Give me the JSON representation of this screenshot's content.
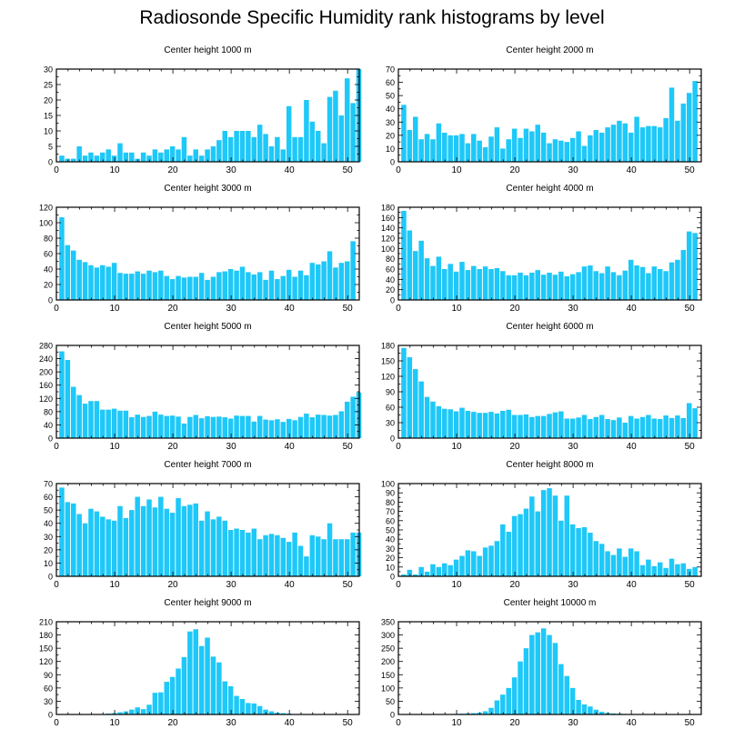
{
  "title": "Radiosonde Specific Humidity rank histograms by level",
  "colors": {
    "bar": "#1ec8f8",
    "bar_edge": "#ffffff",
    "axis": "#000000"
  },
  "chart_data": [
    {
      "type": "bar",
      "title": "Center height 1000 m",
      "xlim": [
        0,
        52
      ],
      "ylim": [
        0,
        30
      ],
      "xticks": [
        0,
        10,
        20,
        30,
        40,
        50
      ],
      "yticks": [
        0,
        5,
        10,
        15,
        20,
        25,
        30
      ],
      "values": [
        2,
        1,
        1,
        5,
        2,
        3,
        2,
        3,
        4,
        2,
        6,
        3,
        3,
        1,
        3,
        2,
        4,
        3,
        4,
        5,
        4,
        8,
        2,
        4,
        2,
        4,
        5,
        7,
        10,
        8,
        10,
        10,
        10,
        8,
        12,
        9,
        5,
        8,
        4,
        18,
        8,
        8,
        20,
        13,
        10,
        6,
        21,
        23,
        15,
        27,
        19,
        30
      ]
    },
    {
      "type": "bar",
      "title": "Center height 2000 m",
      "xlim": [
        0,
        52
      ],
      "ylim": [
        0,
        70
      ],
      "xticks": [
        0,
        10,
        20,
        30,
        40,
        50
      ],
      "yticks": [
        0,
        10,
        20,
        30,
        40,
        50,
        60,
        70
      ],
      "values": [
        43,
        24,
        34,
        17,
        21,
        17,
        29,
        22,
        20,
        20,
        21,
        14,
        21,
        16,
        11,
        19,
        26,
        10,
        17,
        25,
        18,
        25,
        23,
        28,
        22,
        14,
        17,
        16,
        15,
        18,
        23,
        12,
        20,
        24,
        22,
        26,
        28,
        31,
        29,
        22,
        34,
        26,
        27,
        27,
        26,
        33,
        56,
        31,
        44,
        52,
        61
      ]
    },
    {
      "type": "bar",
      "title": "Center height 3000 m",
      "xlim": [
        0,
        52
      ],
      "ylim": [
        0,
        120
      ],
      "xticks": [
        0,
        10,
        20,
        30,
        40,
        50
      ],
      "yticks": [
        0,
        20,
        40,
        60,
        80,
        100,
        120
      ],
      "values": [
        107,
        71,
        64,
        52,
        49,
        45,
        42,
        45,
        43,
        48,
        35,
        34,
        34,
        37,
        34,
        38,
        36,
        38,
        31,
        27,
        31,
        29,
        30,
        30,
        35,
        26,
        30,
        36,
        37,
        40,
        38,
        43,
        36,
        33,
        36,
        26,
        38,
        27,
        31,
        39,
        30,
        38,
        32,
        48,
        46,
        50,
        63,
        42,
        48,
        50,
        76
      ]
    },
    {
      "type": "bar",
      "title": "Center height 4000 m",
      "xlim": [
        0,
        52
      ],
      "ylim": [
        0,
        180
      ],
      "xticks": [
        0,
        10,
        20,
        30,
        40,
        50
      ],
      "yticks": [
        0,
        20,
        40,
        60,
        80,
        100,
        120,
        140,
        160,
        180
      ],
      "values": [
        173,
        135,
        95,
        115,
        81,
        66,
        84,
        60,
        70,
        55,
        74,
        58,
        66,
        60,
        65,
        60,
        62,
        56,
        48,
        48,
        53,
        48,
        53,
        58,
        49,
        53,
        49,
        55,
        46,
        50,
        54,
        65,
        67,
        56,
        52,
        65,
        54,
        48,
        57,
        78,
        67,
        64,
        52,
        65,
        60,
        56,
        73,
        78,
        97,
        133,
        130
      ]
    },
    {
      "type": "bar",
      "title": "Center height 5000 m",
      "xlim": [
        0,
        52
      ],
      "ylim": [
        0,
        280
      ],
      "xticks": [
        0,
        10,
        20,
        30,
        40,
        50
      ],
      "yticks": [
        0,
        40,
        80,
        120,
        160,
        200,
        240,
        280
      ],
      "values": [
        262,
        236,
        155,
        130,
        104,
        112,
        112,
        86,
        86,
        89,
        83,
        83,
        63,
        71,
        64,
        67,
        80,
        71,
        67,
        68,
        65,
        44,
        64,
        70,
        60,
        66,
        64,
        65,
        63,
        59,
        68,
        67,
        67,
        50,
        67,
        56,
        54,
        57,
        49,
        58,
        54,
        64,
        74,
        63,
        71,
        70,
        68,
        70,
        81,
        110,
        125,
        138
      ]
    },
    {
      "type": "bar",
      "title": "Center height 6000 m",
      "xlim": [
        0,
        52
      ],
      "ylim": [
        0,
        180
      ],
      "xticks": [
        0,
        10,
        20,
        30,
        40,
        50
      ],
      "yticks": [
        0,
        30,
        60,
        90,
        120,
        150,
        180
      ],
      "values": [
        175,
        157,
        134,
        110,
        80,
        71,
        62,
        57,
        56,
        52,
        59,
        53,
        51,
        49,
        49,
        51,
        48,
        53,
        55,
        45,
        45,
        46,
        41,
        43,
        43,
        47,
        50,
        52,
        38,
        38,
        40,
        45,
        37,
        41,
        45,
        37,
        35,
        40,
        30,
        43,
        38,
        41,
        45,
        38,
        37,
        44,
        39,
        44,
        39,
        68,
        58
      ]
    },
    {
      "type": "bar",
      "title": "Center height 7000 m",
      "xlim": [
        0,
        52
      ],
      "ylim": [
        0,
        70
      ],
      "xticks": [
        0,
        10,
        20,
        30,
        40,
        50
      ],
      "yticks": [
        0,
        10,
        20,
        30,
        40,
        50,
        60,
        70
      ],
      "values": [
        67,
        56,
        55,
        47,
        40,
        51,
        49,
        45,
        43,
        42,
        53,
        44,
        50,
        60,
        53,
        58,
        52,
        60,
        51,
        48,
        59,
        53,
        54,
        55,
        42,
        49,
        43,
        45,
        42,
        35,
        36,
        35,
        33,
        36,
        28,
        31,
        32,
        31,
        29,
        26,
        33,
        23,
        15,
        31,
        30,
        28,
        40,
        28,
        28,
        28,
        33,
        33
      ]
    },
    {
      "type": "bar",
      "title": "Center height 8000 m",
      "xlim": [
        0,
        52
      ],
      "ylim": [
        0,
        100
      ],
      "xticks": [
        0,
        10,
        20,
        30,
        40,
        50
      ],
      "yticks": [
        0,
        10,
        20,
        30,
        40,
        50,
        60,
        70,
        80,
        90,
        100
      ],
      "values": [
        2,
        7,
        2,
        10,
        5,
        13,
        10,
        14,
        12,
        18,
        22,
        28,
        27,
        22,
        31,
        33,
        38,
        56,
        48,
        65,
        67,
        73,
        86,
        70,
        93,
        95,
        87,
        60,
        87,
        56,
        52,
        53,
        47,
        38,
        35,
        27,
        23,
        30,
        21,
        30,
        27,
        12,
        18,
        11,
        15,
        9,
        19,
        13,
        14,
        8,
        10
      ]
    },
    {
      "type": "bar",
      "title": "Center height 9000 m",
      "xlim": [
        0,
        52
      ],
      "ylim": [
        0,
        210
      ],
      "xticks": [
        0,
        10,
        20,
        30,
        40,
        50
      ],
      "yticks": [
        0,
        30,
        60,
        90,
        120,
        150,
        180,
        210
      ],
      "values": [
        0,
        0,
        0,
        0,
        1,
        1,
        1,
        1,
        2,
        3,
        5,
        7,
        11,
        16,
        12,
        22,
        49,
        50,
        74,
        85,
        104,
        130,
        188,
        193,
        155,
        174,
        131,
        118,
        75,
        64,
        42,
        35,
        26,
        25,
        19,
        11,
        7,
        4,
        3,
        2,
        1,
        1,
        1,
        1,
        0,
        0,
        0,
        0,
        0,
        0,
        0
      ]
    },
    {
      "type": "bar",
      "title": "Center height 10000 m",
      "xlim": [
        0,
        52
      ],
      "ylim": [
        0,
        350
      ],
      "xticks": [
        0,
        10,
        20,
        30,
        40,
        50
      ],
      "yticks": [
        0,
        50,
        100,
        150,
        200,
        250,
        300,
        350
      ],
      "values": [
        0,
        0,
        0,
        0,
        0,
        1,
        1,
        1,
        1,
        2,
        3,
        4,
        5,
        7,
        12,
        25,
        53,
        75,
        100,
        140,
        200,
        250,
        300,
        310,
        325,
        300,
        270,
        190,
        145,
        100,
        55,
        38,
        30,
        18,
        10,
        6,
        4,
        3,
        2,
        1,
        1,
        1,
        0,
        0,
        0,
        0,
        0,
        0,
        0,
        0,
        0
      ]
    }
  ]
}
